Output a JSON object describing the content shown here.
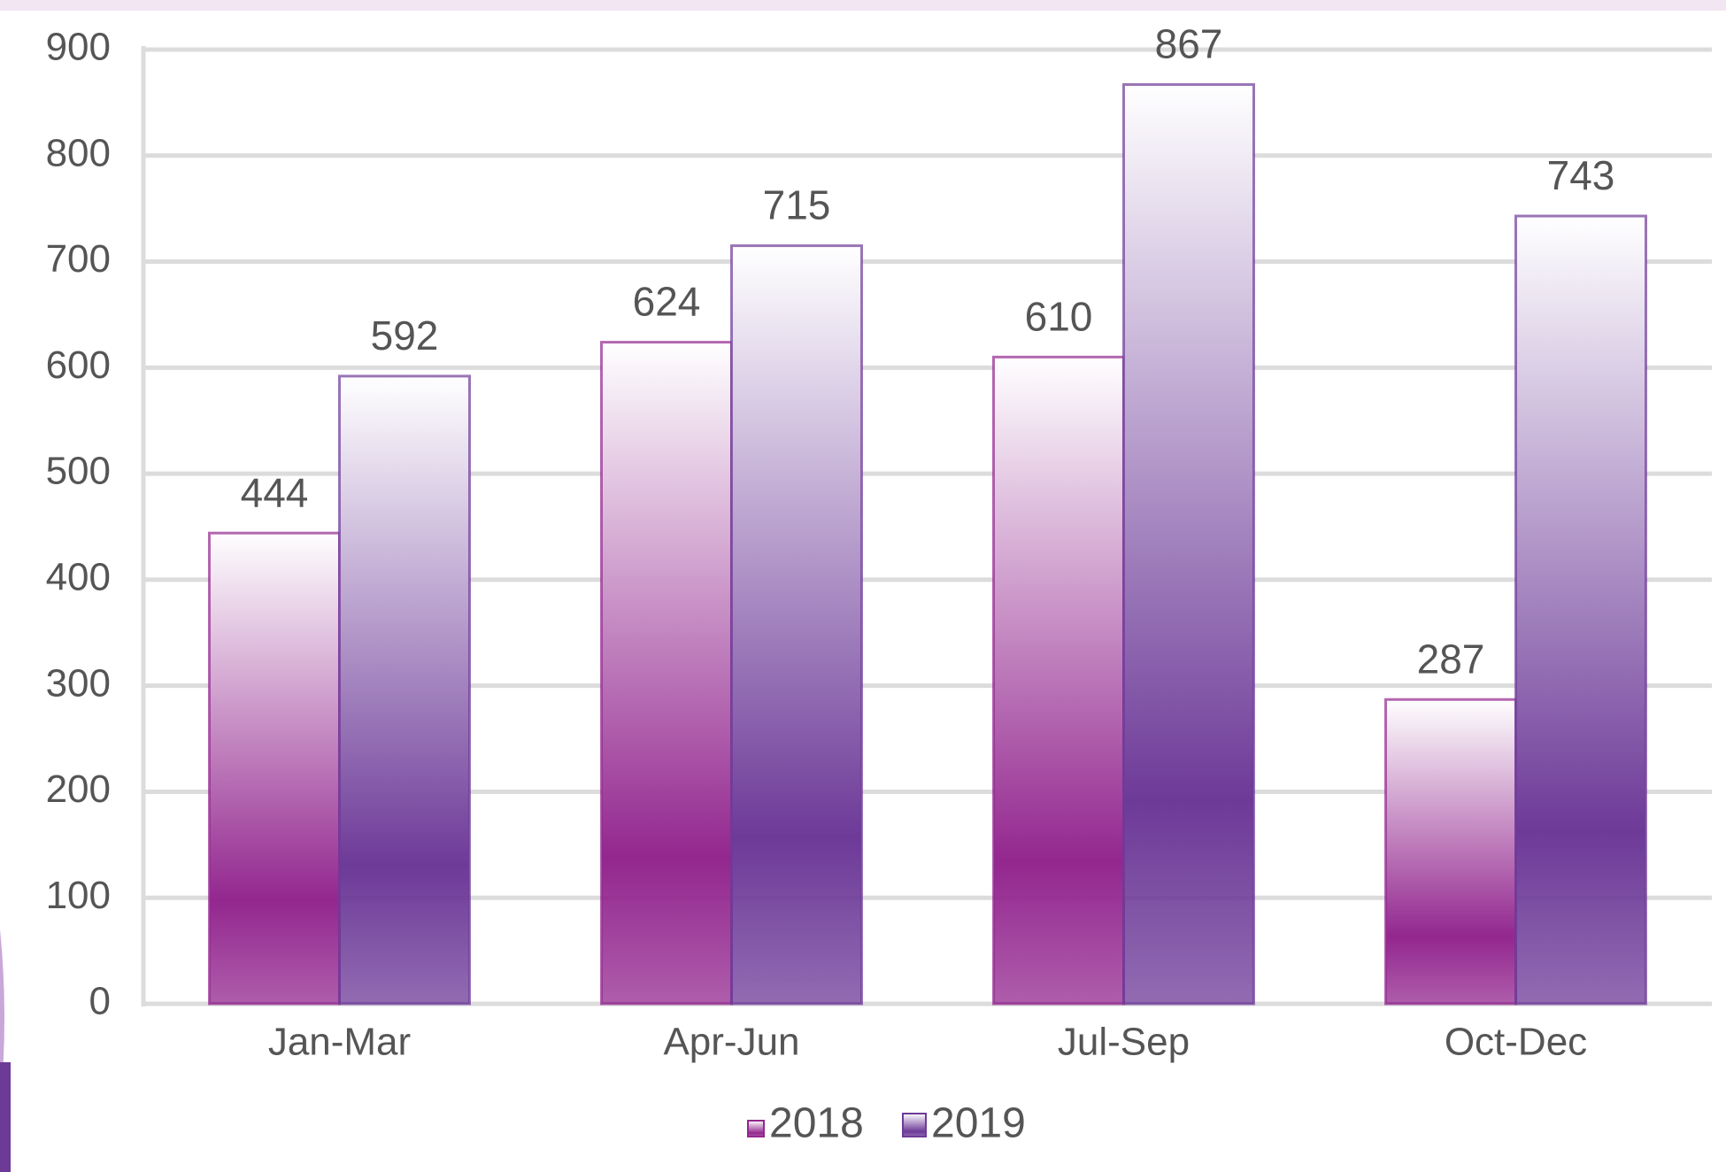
{
  "chart_data": {
    "type": "bar",
    "categories": [
      "Jan-Mar",
      "Apr-Jun",
      "Jul-Sep",
      "Oct-Dec"
    ],
    "series": [
      {
        "name": "2018",
        "color": "#93278f",
        "values": [
          444,
          624,
          610,
          287
        ]
      },
      {
        "name": "2019",
        "color": "#6d3a98",
        "values": [
          592,
          715,
          867,
          743
        ]
      }
    ],
    "ylim": [
      0,
      900
    ],
    "yticks": [
      0,
      100,
      200,
      300,
      400,
      500,
      600,
      700,
      800,
      900
    ],
    "grid": true,
    "legend": "bottom"
  }
}
